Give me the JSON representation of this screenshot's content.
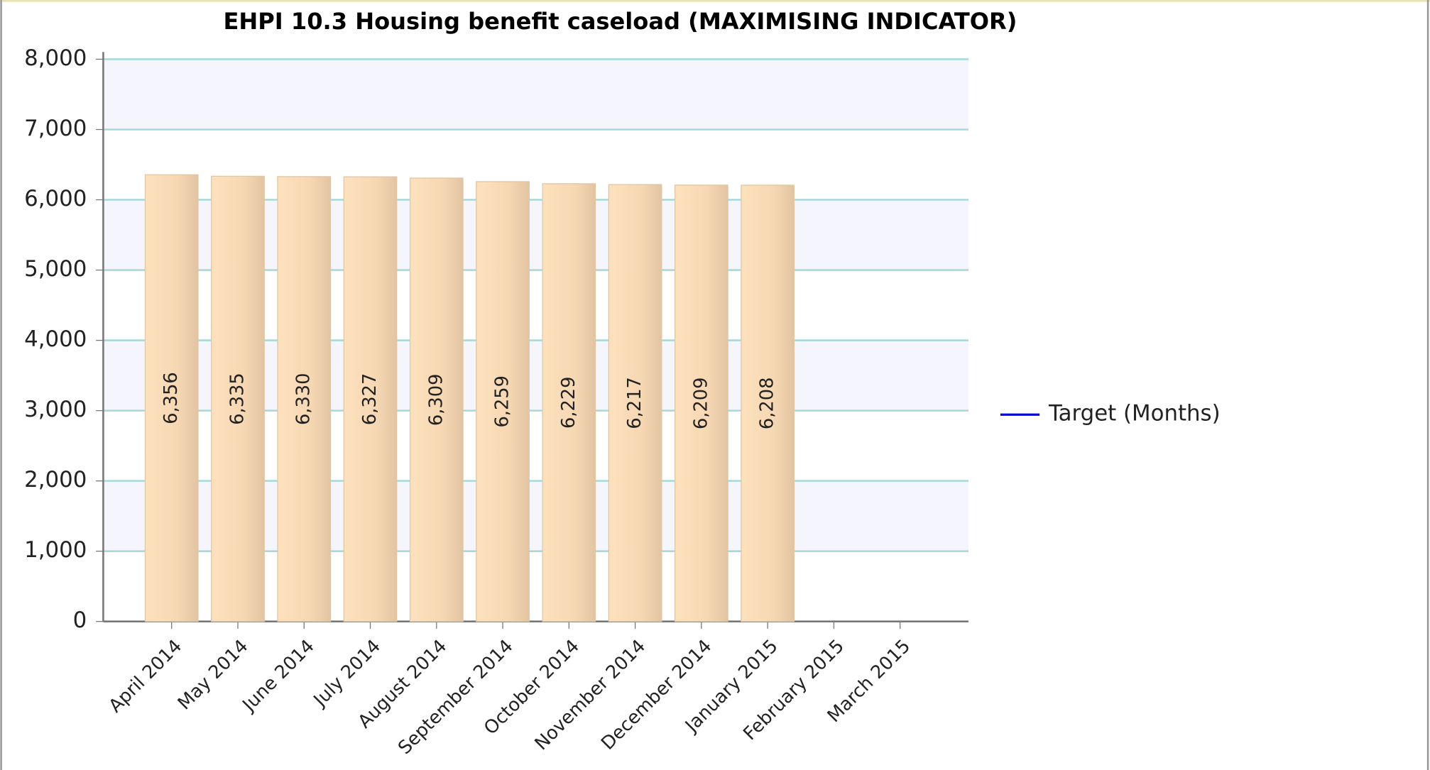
{
  "chart_data": {
    "type": "bar",
    "title": "EHPI 10.3 Housing benefit caseload (MAXIMISING INDICATOR)",
    "categories": [
      "April 2014",
      "May 2014",
      "June 2014",
      "July 2014",
      "August 2014",
      "September 2014",
      "October 2014",
      "November 2014",
      "December 2014",
      "January 2015",
      "February 2015",
      "March 2015"
    ],
    "values": [
      6356,
      6335,
      6330,
      6327,
      6309,
      6259,
      6229,
      6217,
      6209,
      6208,
      null,
      null
    ],
    "value_labels": [
      "6,356",
      "6,335",
      "6,330",
      "6,327",
      "6,309",
      "6,259",
      "6,229",
      "6,217",
      "6,209",
      "6,208",
      null,
      null
    ],
    "color": "#f6d9b5",
    "series": [
      {
        "name": "Target (Months)",
        "color": "#0000ff",
        "values": [
          null,
          null,
          null,
          null,
          null,
          null,
          null,
          null,
          null,
          null,
          null,
          null
        ]
      }
    ],
    "ylim": [
      0,
      8000
    ],
    "yticks": [
      0,
      {
        "value": 1000,
        "label": "1,000"
      },
      {
        "value": 2000,
        "label": "2,000"
      },
      {
        "value": 3000,
        "label": "3,000"
      },
      {
        "value": 4000,
        "label": "4,000"
      },
      {
        "value": 5000,
        "label": "5,000"
      },
      {
        "value": 6000,
        "label": "6,000"
      },
      {
        "value": 7000,
        "label": "7,000"
      },
      {
        "value": 8000,
        "label": "8,000"
      }
    ],
    "grid": true,
    "legend": "right"
  }
}
